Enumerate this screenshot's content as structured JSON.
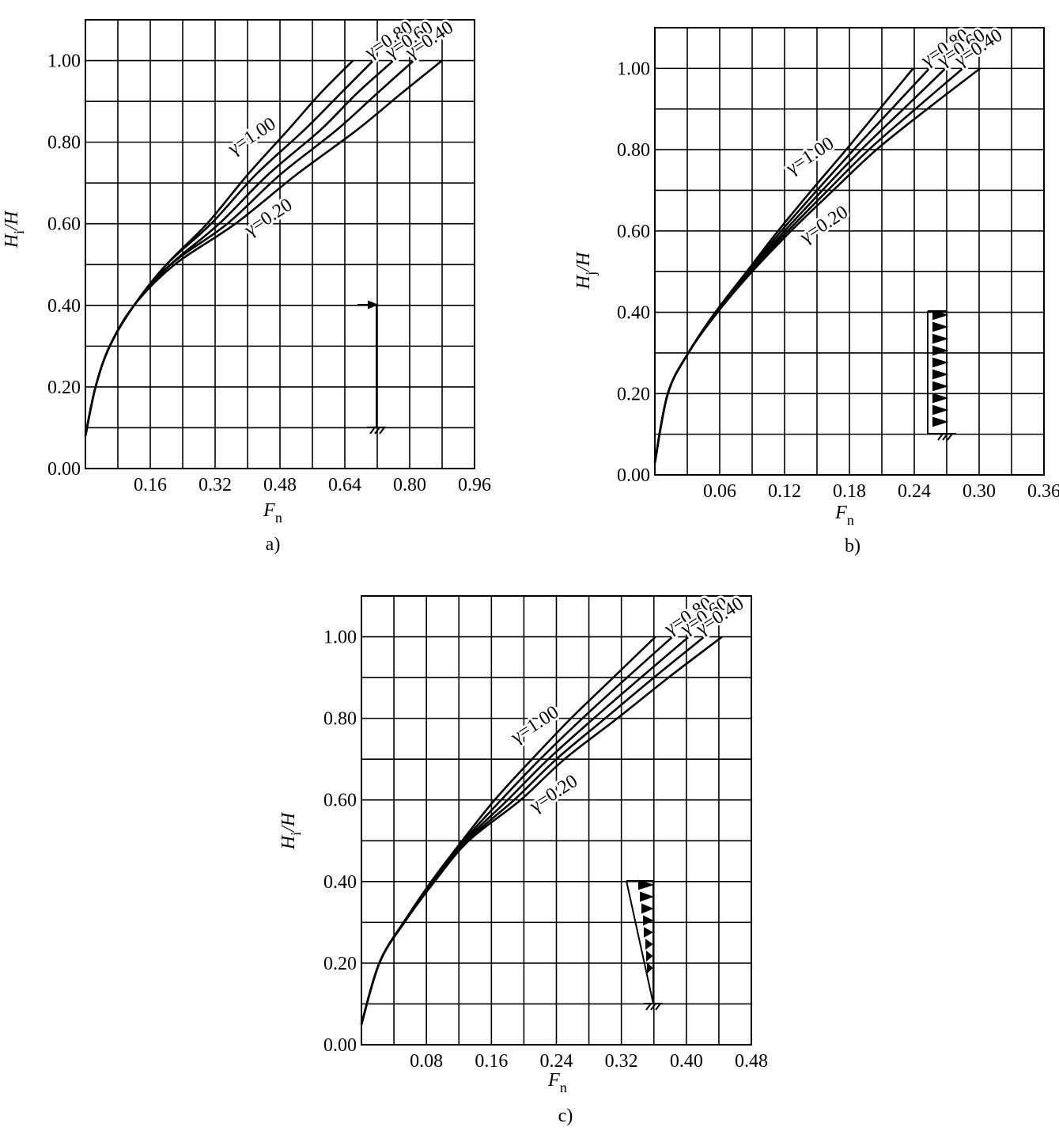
{
  "chart_data": [
    {
      "type": "line",
      "panel_label": "a)",
      "xlabel": {
        "base": "F",
        "sub": "n"
      },
      "ylabel": {
        "base": "H",
        "sub": "i",
        "tail": "/H"
      },
      "xlim": [
        0,
        0.96
      ],
      "ylim": [
        0,
        1.1
      ],
      "xticks": [
        0.16,
        0.32,
        0.48,
        0.64,
        {
          "value": 0.8,
          "label": "0.80"
        },
        0.96
      ],
      "xgrid": [
        0.08,
        0.24,
        0.4,
        0.56,
        0.72,
        0.88
      ],
      "yticks": [
        {
          "value": 0,
          "label": "0.00"
        },
        {
          "value": 0.2,
          "label": "0.20"
        },
        {
          "value": 0.4,
          "label": "0.40"
        },
        {
          "value": 0.6,
          "label": "0.60"
        },
        {
          "value": 0.8,
          "label": "0.80"
        },
        {
          "value": 1,
          "label": "1.00"
        }
      ],
      "ygrid": [
        0.1,
        0.3,
        0.5,
        0.7,
        0.9
      ],
      "grid": true,
      "series": [
        {
          "name": "γ=1.00",
          "color": "#000000",
          "x": [
            0,
            0.025,
            0.06,
            0.12,
            0.2,
            0.3,
            0.4,
            0.5,
            0.58,
            0.66
          ],
          "values": [
            0.08,
            0.2,
            0.3,
            0.4,
            0.5,
            0.6,
            0.72,
            0.83,
            0.92,
            1.0
          ]
        },
        {
          "name": "γ=0.80",
          "color": "#000000",
          "x": [
            0,
            0.025,
            0.06,
            0.12,
            0.2,
            0.31,
            0.42,
            0.54,
            0.63,
            0.71
          ],
          "values": [
            0.08,
            0.2,
            0.3,
            0.4,
            0.5,
            0.6,
            0.72,
            0.83,
            0.92,
            1.0
          ]
        },
        {
          "name": "γ=0.60",
          "color": "#000000",
          "x": [
            0,
            0.025,
            0.06,
            0.12,
            0.21,
            0.33,
            0.45,
            0.58,
            0.67,
            0.76
          ],
          "values": [
            0.08,
            0.2,
            0.3,
            0.4,
            0.5,
            0.6,
            0.72,
            0.83,
            0.92,
            1.0
          ]
        },
        {
          "name": "γ=0.40",
          "color": "#000000",
          "x": [
            0,
            0.025,
            0.06,
            0.12,
            0.21,
            0.35,
            0.48,
            0.62,
            0.72,
            0.81
          ],
          "values": [
            0.08,
            0.2,
            0.3,
            0.4,
            0.5,
            0.6,
            0.72,
            0.83,
            0.92,
            1.0
          ]
        },
        {
          "name": "γ=0.20",
          "color": "#000000",
          "x": [
            0,
            0.025,
            0.06,
            0.12,
            0.22,
            0.37,
            0.52,
            0.67,
            0.78,
            0.88
          ],
          "values": [
            0.08,
            0.2,
            0.3,
            0.4,
            0.5,
            0.6,
            0.72,
            0.83,
            0.92,
            1.0
          ]
        }
      ]
    },
    {
      "type": "line",
      "panel_label": "b)",
      "xlabel": {
        "base": "F",
        "sub": "n"
      },
      "ylabel": {
        "base": "H",
        "sub": "j",
        "tail": "/H"
      },
      "xlim": [
        0,
        0.36
      ],
      "ylim": [
        0,
        1.1
      ],
      "xticks": [
        0.06,
        0.12,
        0.18,
        0.24,
        {
          "value": 0.3,
          "label": "0.30"
        },
        0.36
      ],
      "xgrid": [
        0.03,
        0.09,
        0.15,
        0.21,
        0.27,
        0.33
      ],
      "yticks": [
        {
          "value": 0,
          "label": "0.00"
        },
        {
          "value": 0.2,
          "label": "0.20"
        },
        {
          "value": 0.4,
          "label": "0.40"
        },
        {
          "value": 0.6,
          "label": "0.60"
        },
        {
          "value": 0.8,
          "label": "0.80"
        },
        {
          "value": 1,
          "label": "1.00"
        }
      ],
      "ygrid": [
        0.1,
        0.3,
        0.5,
        0.7,
        0.9
      ],
      "grid": true,
      "series": [
        {
          "name": "γ=1.00",
          "color": "#000000",
          "x": [
            0,
            0.012,
            0.031,
            0.056,
            0.085,
            0.114,
            0.145,
            0.177,
            0.208,
            0.239
          ],
          "values": [
            0.03,
            0.2,
            0.3,
            0.4,
            0.5,
            0.6,
            0.7,
            0.8,
            0.9,
            1.0
          ]
        },
        {
          "name": "γ=0.80",
          "color": "#000000",
          "x": [
            0,
            0.012,
            0.031,
            0.056,
            0.086,
            0.117,
            0.15,
            0.184,
            0.219,
            0.254
          ],
          "values": [
            0.03,
            0.2,
            0.3,
            0.4,
            0.5,
            0.6,
            0.7,
            0.8,
            0.9,
            1.0
          ]
        },
        {
          "name": "γ=0.60",
          "color": "#000000",
          "x": [
            0,
            0.012,
            0.031,
            0.057,
            0.087,
            0.12,
            0.155,
            0.191,
            0.23,
            0.269
          ],
          "values": [
            0.03,
            0.2,
            0.3,
            0.4,
            0.5,
            0.6,
            0.7,
            0.8,
            0.9,
            1.0
          ]
        },
        {
          "name": "γ=0.40",
          "color": "#000000",
          "x": [
            0,
            0.012,
            0.031,
            0.057,
            0.088,
            0.123,
            0.16,
            0.198,
            0.241,
            0.285
          ],
          "values": [
            0.03,
            0.2,
            0.3,
            0.4,
            0.5,
            0.6,
            0.7,
            0.8,
            0.9,
            1.0
          ]
        },
        {
          "name": "γ=0.20",
          "color": "#000000",
          "x": [
            0,
            0.012,
            0.031,
            0.058,
            0.09,
            0.126,
            0.165,
            0.205,
            0.252,
            0.301
          ],
          "values": [
            0.03,
            0.2,
            0.3,
            0.4,
            0.5,
            0.6,
            0.7,
            0.8,
            0.9,
            1.0
          ]
        }
      ]
    },
    {
      "type": "line",
      "panel_label": "c)",
      "xlabel": {
        "base": "F",
        "sub": "n"
      },
      "ylabel": {
        "base": "H",
        "sub": "i",
        "tail": "/H"
      },
      "xlim": [
        0,
        0.48
      ],
      "ylim": [
        0,
        1.1
      ],
      "xticks": [
        0.08,
        0.16,
        0.24,
        0.32,
        {
          "value": 0.4,
          "label": "0.40"
        },
        0.48
      ],
      "xgrid": [
        0.04,
        0.12,
        0.2,
        0.28,
        0.36,
        0.44
      ],
      "yticks": [
        {
          "value": 0,
          "label": "0.00"
        },
        {
          "value": 0.2,
          "label": "0.20"
        },
        {
          "value": 0.4,
          "label": "0.40"
        },
        {
          "value": 0.6,
          "label": "0.60"
        },
        {
          "value": 0.8,
          "label": "0.80"
        },
        {
          "value": 1,
          "label": "1.00"
        }
      ],
      "ygrid": [
        0.1,
        0.3,
        0.5,
        0.7,
        0.9
      ],
      "grid": true,
      "series": [
        {
          "name": "γ=1.00",
          "color": "#000000",
          "x": [
            0,
            0.022,
            0.052,
            0.086,
            0.124,
            0.164,
            0.21,
            0.258,
            0.31,
            0.362
          ],
          "values": [
            0.05,
            0.2,
            0.3,
            0.4,
            0.5,
            0.6,
            0.7,
            0.8,
            0.9,
            1.0
          ]
        },
        {
          "name": "γ=0.80",
          "color": "#000000",
          "x": [
            0,
            0.022,
            0.052,
            0.087,
            0.126,
            0.172,
            0.22,
            0.272,
            0.327,
            0.383
          ],
          "values": [
            0.05,
            0.2,
            0.3,
            0.4,
            0.5,
            0.6,
            0.7,
            0.8,
            0.9,
            1.0
          ]
        },
        {
          "name": "γ=0.60",
          "color": "#000000",
          "x": [
            0,
            0.022,
            0.052,
            0.088,
            0.128,
            0.18,
            0.23,
            0.286,
            0.344,
            0.403
          ],
          "values": [
            0.05,
            0.2,
            0.3,
            0.4,
            0.5,
            0.6,
            0.7,
            0.8,
            0.9,
            1.0
          ]
        },
        {
          "name": "γ=0.40",
          "color": "#000000",
          "x": [
            0,
            0.022,
            0.052,
            0.089,
            0.13,
            0.188,
            0.24,
            0.3,
            0.36,
            0.422
          ],
          "values": [
            0.05,
            0.2,
            0.3,
            0.4,
            0.5,
            0.6,
            0.7,
            0.8,
            0.9,
            1.0
          ]
        },
        {
          "name": "γ=0.20",
          "color": "#000000",
          "x": [
            0,
            0.022,
            0.053,
            0.09,
            0.132,
            0.196,
            0.25,
            0.315,
            0.378,
            0.444
          ],
          "values": [
            0.05,
            0.2,
            0.3,
            0.4,
            0.5,
            0.6,
            0.7,
            0.8,
            0.9,
            1.0
          ]
        }
      ]
    }
  ]
}
